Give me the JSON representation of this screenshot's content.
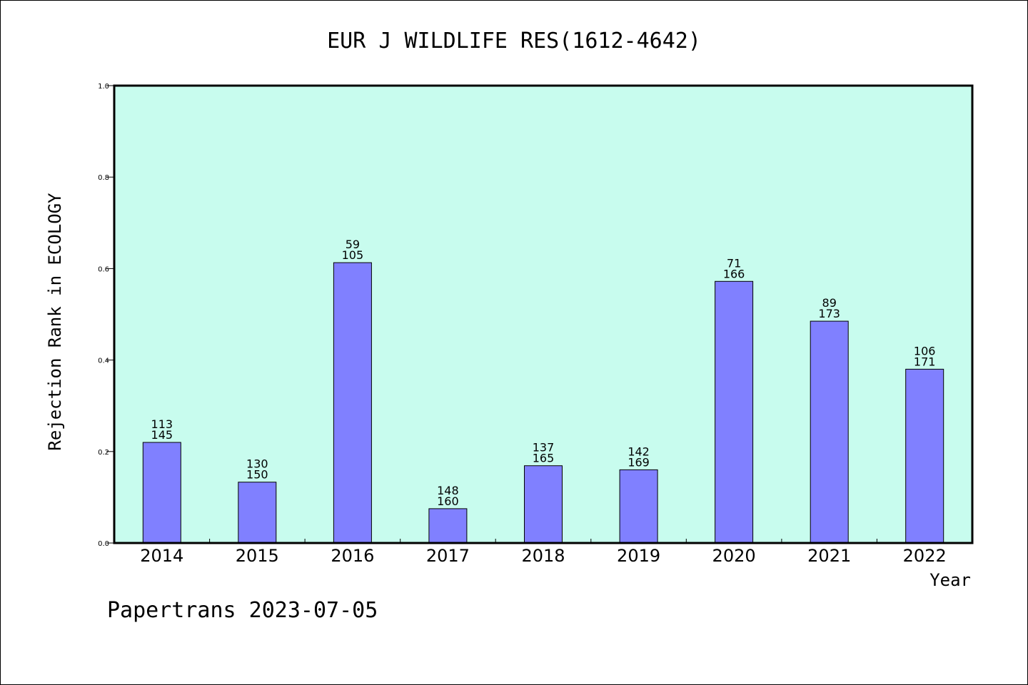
{
  "chart_data": {
    "type": "bar",
    "title": "EUR J WILDLIFE RES(1612-4642)",
    "xlabel": "Year",
    "ylabel": "Rejection Rank in ECOLOGY",
    "ylim": [
      0,
      1.0
    ],
    "yticks": [
      "0.0",
      "0.2",
      "0.4",
      "0.6",
      "0.8",
      "1.0"
    ],
    "categories": [
      "2014",
      "2015",
      "2016",
      "2017",
      "2018",
      "2019",
      "2020",
      "2021",
      "2022"
    ],
    "values": [
      0.22,
      0.133,
      0.613,
      0.075,
      0.169,
      0.16,
      0.572,
      0.485,
      0.38
    ],
    "labels_top": [
      "113",
      "130",
      "59",
      "148",
      "137",
      "142",
      "71",
      "89",
      "106"
    ],
    "labels_bottom": [
      "145",
      "150",
      "105",
      "160",
      "165",
      "169",
      "166",
      "173",
      "171"
    ],
    "grid": false,
    "colors": {
      "plot_bg": "#c8fcee",
      "bar": "#8080ff",
      "frame": "#000000"
    }
  },
  "footer": "Papertrans 2023-07-05"
}
